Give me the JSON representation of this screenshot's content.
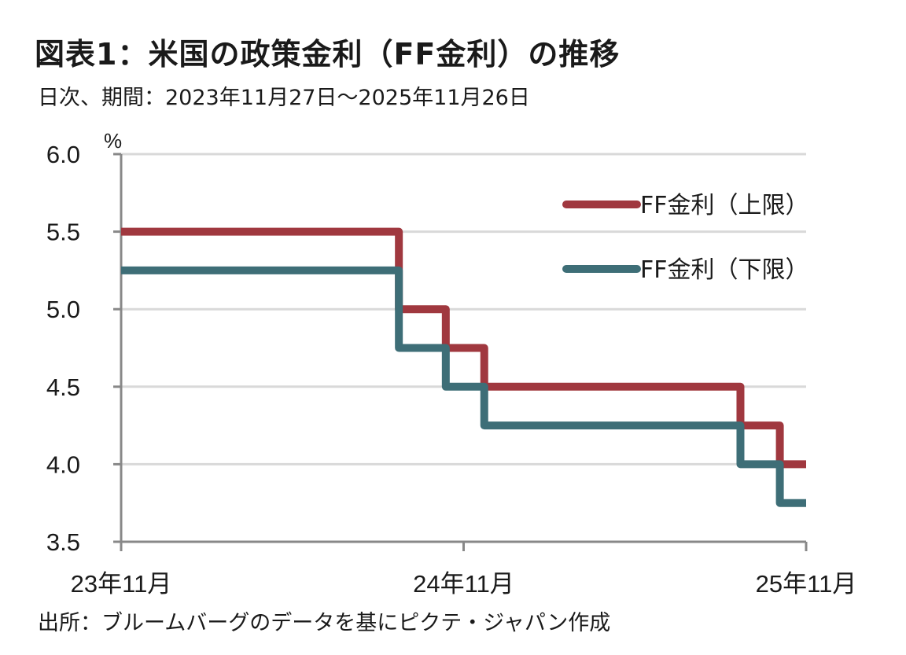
{
  "header": {
    "title": "図表1：米国の政策金利（FF金利）の推移",
    "subtitle": "日次、期間：2023年11月27日～2025年11月26日"
  },
  "footer": {
    "source": "出所：ブルームバーグのデータを基にピクテ・ジャパン作成"
  },
  "chart_data": {
    "type": "line",
    "step": true,
    "title": "図表1：米国の政策金利（FF金利）の推移",
    "subtitle": "日次、期間：2023年11月27日～2025年11月26日",
    "xlabel": "",
    "ylabel": "%",
    "x_range": [
      "2023-11-27",
      "2025-11-26"
    ],
    "ylim": [
      3.5,
      6.0
    ],
    "y_ticks": [
      3.5,
      4.0,
      4.5,
      5.0,
      5.5,
      6.0
    ],
    "y_tick_labels": [
      "3.5",
      "4.0",
      "4.5",
      "5.0",
      "5.5",
      "6.0"
    ],
    "x_ticks": [
      {
        "date": "2023-11-27",
        "label": "23年11月"
      },
      {
        "date": "2024-11-26",
        "label": "24年11月"
      },
      {
        "date": "2025-11-26",
        "label": "25年11月"
      }
    ],
    "grid": true,
    "legend_position": "top-right",
    "series": [
      {
        "name": "FF金利（上限）",
        "color": "#A0383F",
        "points": [
          {
            "date": "2023-11-27",
            "value": 5.5
          },
          {
            "date": "2024-09-18",
            "value": 5.0
          },
          {
            "date": "2024-11-07",
            "value": 4.75
          },
          {
            "date": "2024-12-18",
            "value": 4.5
          },
          {
            "date": "2025-09-17",
            "value": 4.25
          },
          {
            "date": "2025-10-29",
            "value": 4.0
          },
          {
            "date": "2025-11-26",
            "value": 4.0
          }
        ]
      },
      {
        "name": "FF金利（下限）",
        "color": "#3E6E77",
        "points": [
          {
            "date": "2023-11-27",
            "value": 5.25
          },
          {
            "date": "2024-09-18",
            "value": 4.75
          },
          {
            "date": "2024-11-07",
            "value": 4.5
          },
          {
            "date": "2024-12-18",
            "value": 4.25
          },
          {
            "date": "2025-09-17",
            "value": 4.0
          },
          {
            "date": "2025-10-29",
            "value": 3.75
          },
          {
            "date": "2025-11-26",
            "value": 3.75
          }
        ]
      }
    ]
  }
}
